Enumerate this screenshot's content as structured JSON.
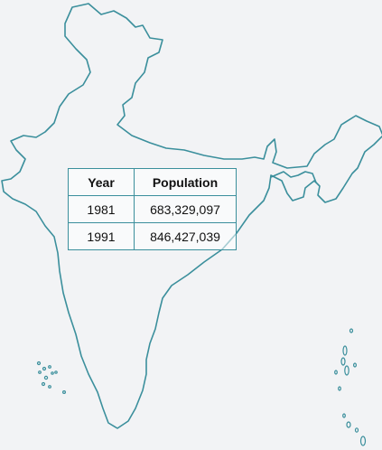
{
  "table": {
    "headers": {
      "year": "Year",
      "population": "Population"
    },
    "rows": [
      {
        "year": "1981",
        "population": "683,329,097"
      },
      {
        "year": "1991",
        "population": "846,427,039"
      }
    ]
  },
  "map": {
    "outline_color": "#3b8f9c",
    "background_color": "#f2f3f5"
  }
}
